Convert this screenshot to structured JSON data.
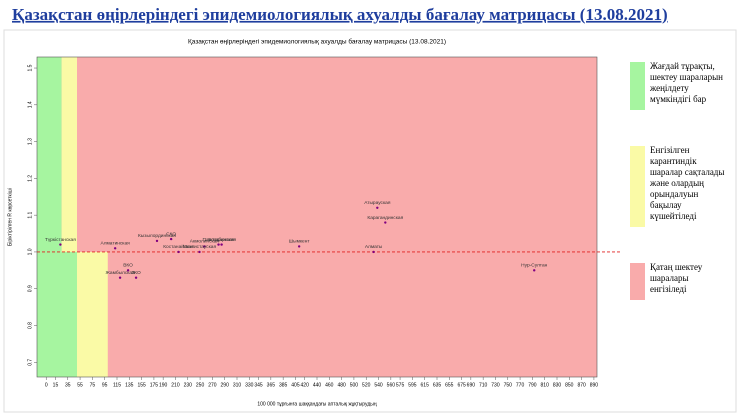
{
  "header": {
    "title": "Қазақстан өңірлеріндегі эпидемиологиялық ахуалды бағалау матрицасы  (13.08.2021)"
  },
  "chart_data": {
    "type": "scatter",
    "title": "Қазақстан өңірлеріндегі эпидемиологиялық ахуалды бағалау матрицасы (13.08.2021)",
    "x_label": "100 000 тұрғынға шаққандағы апталық жұқтырудың",
    "y_label": "Біріктірілген R көрсеткіші",
    "xlim": [
      -15,
      895
    ],
    "ylim": [
      0.66,
      1.53
    ],
    "xticks": [
      0,
      15,
      35,
      55,
      75,
      95,
      115,
      135,
      155,
      175,
      190,
      210,
      230,
      250,
      270,
      290,
      310,
      330,
      345,
      365,
      385,
      405,
      420,
      440,
      460,
      480,
      500,
      520,
      540,
      560,
      575,
      595,
      615,
      635,
      655,
      675,
      690,
      710,
      730,
      750,
      770,
      790,
      810,
      830,
      850,
      870,
      890
    ],
    "yticks": [
      0.7,
      0.8,
      0.9,
      {
        "value": 1.0,
        "label": "1.0"
      },
      1.1,
      1.2,
      1.3,
      1.4,
      1.5
    ],
    "reference_line": 1,
    "zones": {
      "split_y": 1,
      "upper": [
        {
          "to": 25,
          "color": "#a6f5a0"
        },
        {
          "to": 50,
          "color": "#fafaa6"
        }
      ],
      "lower": [
        {
          "to": 50,
          "color": "#a6f5a0"
        },
        {
          "to": 100,
          "color": "#fafaa6"
        }
      ],
      "rest_color": "#f9abab"
    },
    "point_color": "#800080",
    "labels": [
      "Түркістанская",
      "Кызылординская",
      "СКО",
      "Павлодарская",
      "Акмолинская",
      "Актюбинская",
      "Алматинская",
      "Костанайская",
      "Мангистауская",
      "ВКО",
      "ЗКО",
      "Жамбылская",
      "Шымкент",
      "Атырауская",
      "Карагандинская",
      "Алматы",
      "Нур-Султан"
    ],
    "x": [
      23,
      180,
      203,
      280,
      257,
      285,
      112,
      215,
      249,
      133,
      146,
      120,
      411,
      538,
      551,
      532,
      793
    ],
    "values": [
      1.02,
      1.03,
      1.035,
      1.02,
      1.015,
      1.02,
      1.01,
      1.0,
      1.0,
      0.95,
      0.93,
      0.93,
      1.015,
      1.12,
      1.08,
      1.0,
      0.95
    ],
    "legend": [
      {
        "color": "#a6f5a0",
        "label": "Жағдай тұрақты, шектеу шараларын жеңілдету мүмкіндігі бар"
      },
      {
        "color": "#fafaa6",
        "label": "Енгізілген карантиндік шаралар сақталады және олардың орындалуын бақылау күшейтіледі"
      },
      {
        "color": "#f9abab",
        "label": "Қатаң шектеу шаралары енгізіледі"
      }
    ]
  }
}
